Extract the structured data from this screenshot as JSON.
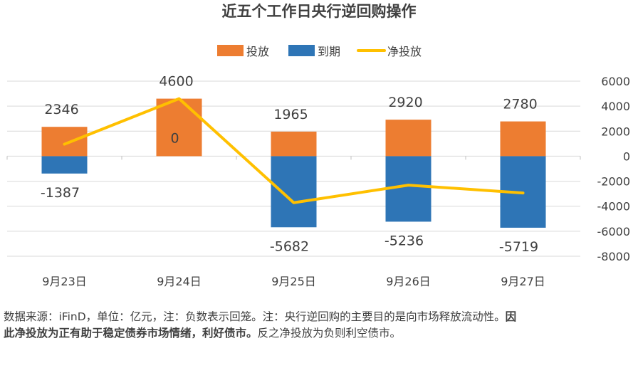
{
  "chart_data": {
    "type": "bar",
    "title": "近五个工作日央行逆回购操作",
    "categories": [
      "9月23日",
      "9月24日",
      "9月25日",
      "9月26日",
      "9月27日"
    ],
    "series": [
      {
        "name": "投放",
        "type": "bar",
        "color": "#ED7D31",
        "values": [
          2346,
          4600,
          1965,
          2920,
          2780
        ]
      },
      {
        "name": "到期",
        "type": "bar",
        "color": "#2E75B6",
        "values": [
          -1387,
          0,
          -5682,
          -5236,
          -5719
        ]
      },
      {
        "name": "净投放",
        "type": "line",
        "color": "#FFC000",
        "values": [
          959,
          4600,
          -3717,
          -2316,
          -2939
        ]
      }
    ],
    "data_labels": {
      "top": [
        "2346",
        "4600",
        "1965",
        "2920",
        "2780"
      ],
      "bottom": [
        "-1387",
        "0",
        "-5682",
        "-5236",
        "-5719"
      ]
    },
    "y_ticks": [
      "6000",
      "4000",
      "2000",
      "0",
      "-2000",
      "-4000",
      "-6000",
      "-8000"
    ],
    "ylim": [
      -8000,
      6000
    ],
    "y_axis_side": "right",
    "grid": true,
    "legend_position": "top",
    "stacked": true
  },
  "note": {
    "part1": "数据来源：iFinD，单位：亿元，注：负数表示回笼。注：央行逆回购的主要目的是向市场释放流动性。",
    "bold": "因此净投放为正有助于稳定债券市场情绪，利好债市。",
    "part2": "反之净投放为负则利空债市。"
  }
}
